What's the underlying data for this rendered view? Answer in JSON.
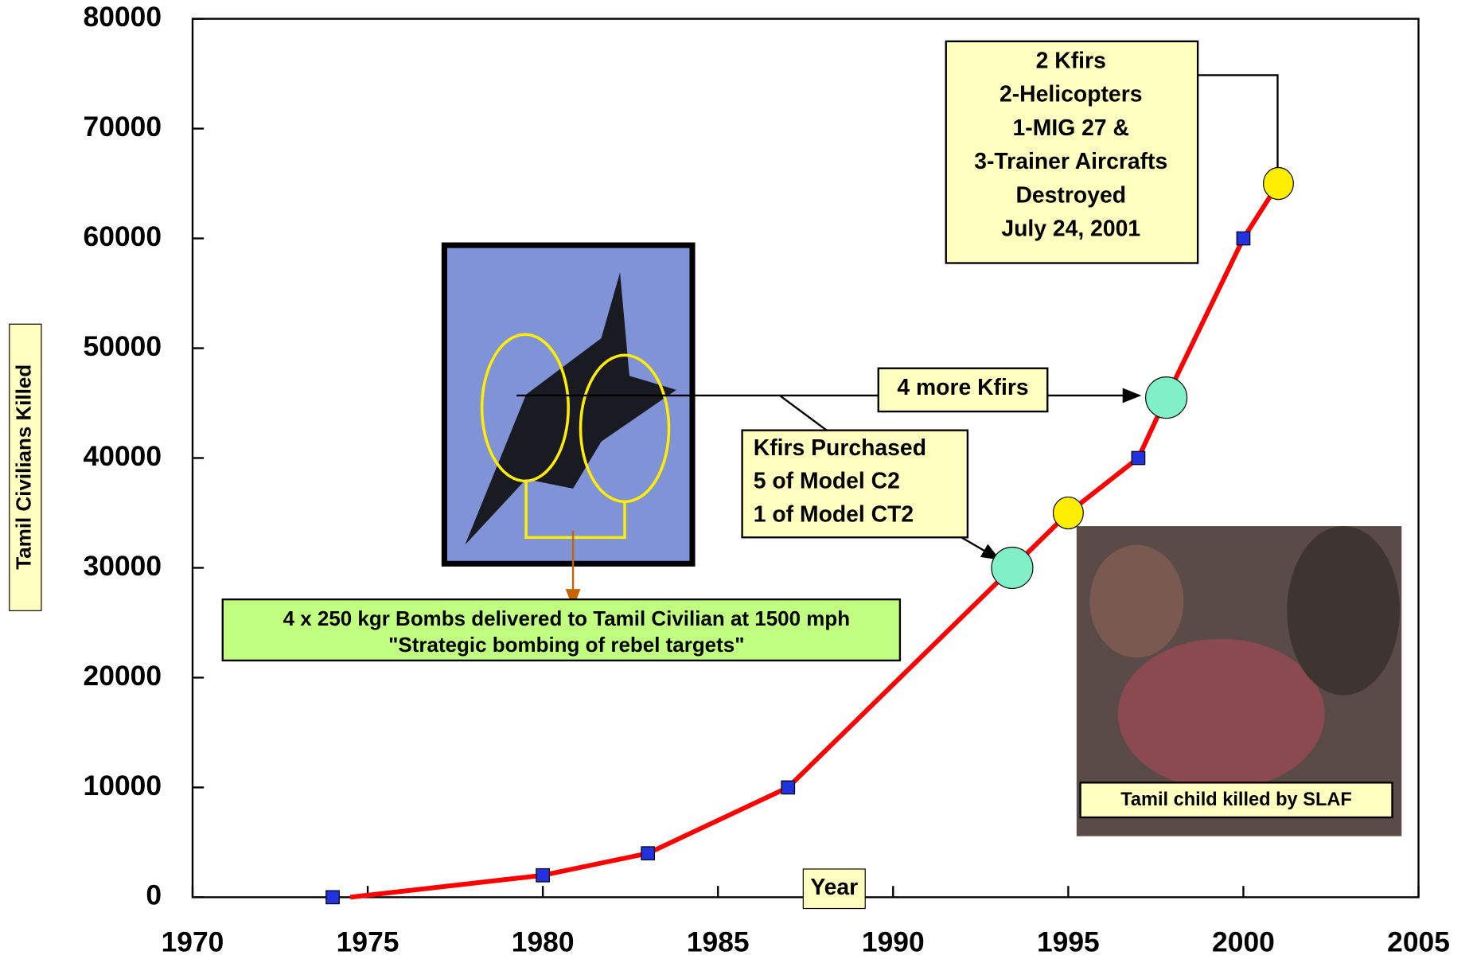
{
  "chart_data": {
    "type": "line",
    "x_label": "Year",
    "y_label": "Tamil Civilians Killed",
    "xlim": [
      1970,
      2005
    ],
    "xticks": [
      1970,
      1975,
      1980,
      1985,
      1990,
      1995,
      2000,
      2005
    ],
    "ylim": [
      0,
      80000
    ],
    "yticks": [
      0,
      10000,
      20000,
      30000,
      40000,
      50000,
      60000,
      70000,
      80000
    ],
    "series": [
      {
        "color": "#ff0000",
        "x": [
          1974.5,
          1980,
          1983,
          1987,
          1993.4,
          1995,
          1997,
          1997.8,
          2000,
          2001
        ],
        "values": [
          0,
          2000,
          4000,
          10000,
          30000,
          35000,
          40000,
          45500,
          60000,
          65000
        ]
      },
      {
        "color": "#2233dd",
        "marker": "square",
        "x": [
          1974,
          1980,
          1983,
          1987,
          1997,
          2000
        ],
        "values": [
          0,
          2000,
          4000,
          10000,
          40000,
          60000
        ]
      },
      {
        "color": "#80f0c8",
        "marker": "circle",
        "x": [
          1993.4,
          1997.8
        ],
        "values": [
          30000,
          45500
        ]
      },
      {
        "color": "#ffee00",
        "marker": "circle",
        "x": [
          1995,
          2001
        ],
        "values": [
          35000,
          65000
        ]
      }
    ],
    "annotations": [
      {
        "lines": [
          "2 Kfirs",
          "2-Helicopters",
          "1-MIG 27 &",
          "3-Trainer Aircrafts",
          "Destroyed",
          "July 24, 2001"
        ]
      },
      {
        "lines": [
          "4 more Kfirs"
        ]
      },
      {
        "lines": [
          "Kfirs Purchased",
          "5 of Model C2",
          "1 of Model CT2"
        ]
      },
      {
        "lines": [
          "4 x 250 kgr Bombs delivered to Tamil Civilian at 1500 mph",
          "\"Strategic bombing of rebel  targets\""
        ]
      },
      {
        "lines": [
          "Tamil child killed by SLAF"
        ]
      }
    ]
  }
}
